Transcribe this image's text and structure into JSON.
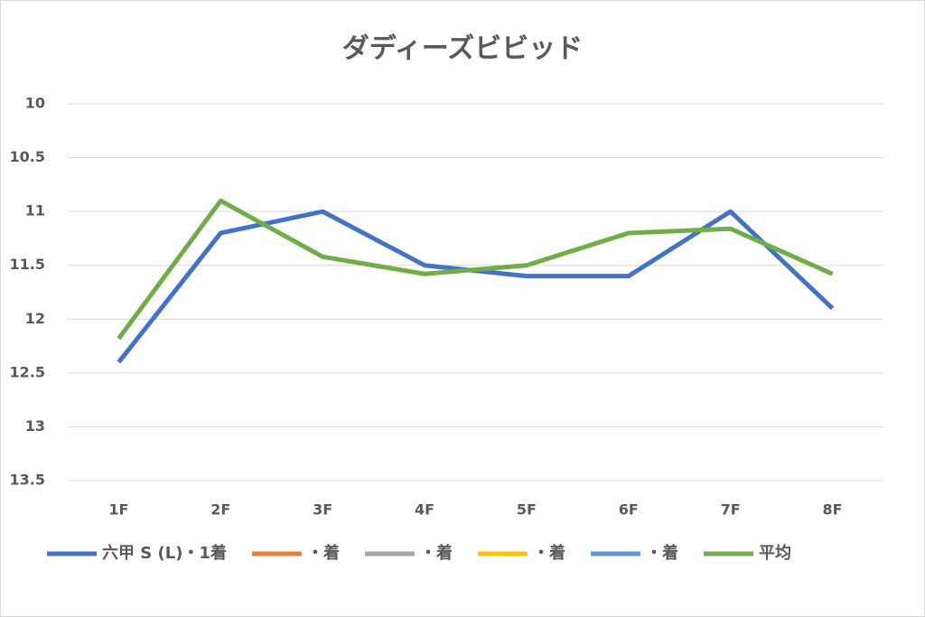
{
  "chart_data": {
    "type": "line",
    "title": "ダディーズビビッド",
    "categories": [
      "1F",
      "2F",
      "3F",
      "4F",
      "5F",
      "6F",
      "7F",
      "8F"
    ],
    "series": [
      {
        "name": "六甲 S (L)・1着",
        "color": "#4472c4",
        "values": [
          12.4,
          11.2,
          11.0,
          11.5,
          11.6,
          11.6,
          11.0,
          11.9
        ]
      },
      {
        "name": "・着",
        "color": "#ed7d31",
        "values": [
          null,
          null,
          null,
          null,
          null,
          null,
          null,
          null
        ]
      },
      {
        "name": "・着",
        "color": "#a5a5a5",
        "values": [
          null,
          null,
          null,
          null,
          null,
          null,
          null,
          null
        ]
      },
      {
        "name": "・着",
        "color": "#ffc000",
        "values": [
          null,
          null,
          null,
          null,
          null,
          null,
          null,
          null
        ]
      },
      {
        "name": "・着",
        "color": "#5b9bd5",
        "values": [
          null,
          null,
          null,
          null,
          null,
          null,
          null,
          null
        ]
      },
      {
        "name": "平均",
        "color": "#70ad47",
        "values": [
          12.18,
          10.9,
          11.42,
          11.58,
          11.5,
          11.2,
          11.16,
          11.58
        ]
      }
    ],
    "ylim": [
      10,
      13.5
    ],
    "y_inverted": true,
    "yticks": [
      10,
      10.5,
      11,
      11.5,
      12,
      12.5,
      13,
      13.5
    ],
    "grid": true,
    "legend": "bottom"
  }
}
